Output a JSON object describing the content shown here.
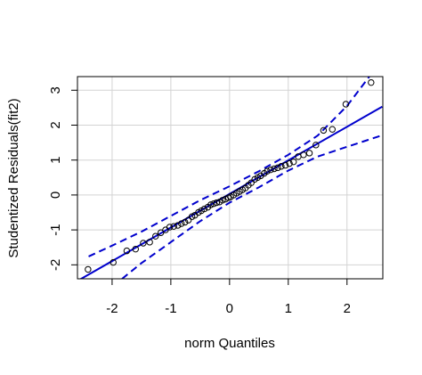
{
  "chart_data": {
    "type": "scatter",
    "xlabel": "norm Quantiles",
    "ylabel": "Studentized Residuals(fit2)",
    "xlim": [
      -2.59,
      2.61
    ],
    "ylim": [
      -2.4,
      3.39
    ],
    "xticks": [
      -2,
      -1,
      0,
      1,
      2
    ],
    "yticks": [
      -2,
      -1,
      0,
      1,
      2,
      3
    ],
    "grid": true,
    "color": "#000000",
    "x": [
      -2.41,
      -1.98,
      -1.75,
      -1.6,
      -1.47,
      -1.36,
      -1.26,
      -1.17,
      -1.09,
      -1.02,
      -0.95,
      -0.88,
      -0.82,
      -0.76,
      -0.7,
      -0.64,
      -0.59,
      -0.53,
      -0.48,
      -0.43,
      -0.37,
      -0.32,
      -0.27,
      -0.22,
      -0.17,
      -0.12,
      -0.07,
      -0.02,
      0.02,
      0.07,
      0.12,
      0.17,
      0.22,
      0.27,
      0.32,
      0.37,
      0.43,
      0.48,
      0.53,
      0.59,
      0.64,
      0.7,
      0.76,
      0.82,
      0.88,
      0.95,
      1.02,
      1.09,
      1.17,
      1.26,
      1.36,
      1.47,
      1.6,
      1.75,
      1.98,
      2.41
    ],
    "values": [
      -2.13,
      -1.93,
      -1.6,
      -1.55,
      -1.38,
      -1.35,
      -1.18,
      -1.08,
      -1.0,
      -0.92,
      -0.9,
      -0.87,
      -0.82,
      -0.78,
      -0.72,
      -0.62,
      -0.58,
      -0.5,
      -0.45,
      -0.4,
      -0.35,
      -0.28,
      -0.25,
      -0.22,
      -0.2,
      -0.15,
      -0.12,
      -0.08,
      -0.05,
      0.0,
      0.05,
      0.1,
      0.15,
      0.2,
      0.28,
      0.35,
      0.45,
      0.5,
      0.55,
      0.62,
      0.68,
      0.72,
      0.75,
      0.78,
      0.82,
      0.85,
      0.9,
      0.95,
      1.1,
      1.15,
      1.2,
      1.43,
      1.85,
      1.88,
      2.6,
      3.22
    ],
    "lines": [
      {
        "color": "#0000cd",
        "dashed": false,
        "x": [
          -2.6,
          2.6
        ],
        "values": [
          -2.47,
          2.53
        ]
      },
      {
        "color": "#0000cd",
        "dashed": true,
        "x": [
          -2.4,
          -2,
          -1.5,
          -1,
          -0.5,
          0,
          0.5,
          1,
          1.5,
          2,
          2.38
        ],
        "values": [
          -1.76,
          -1.45,
          -1.05,
          -0.6,
          -0.15,
          0.25,
          0.68,
          1.15,
          1.7,
          2.55,
          3.39
        ]
      },
      {
        "color": "#0000cd",
        "dashed": true,
        "x": [
          -1.83,
          -1.5,
          -1,
          -0.5,
          0,
          0.5,
          1,
          1.5,
          2,
          2.6
        ],
        "values": [
          -2.4,
          -1.95,
          -1.35,
          -0.75,
          -0.22,
          0.22,
          0.7,
          1.1,
          1.38,
          1.71
        ]
      }
    ]
  }
}
